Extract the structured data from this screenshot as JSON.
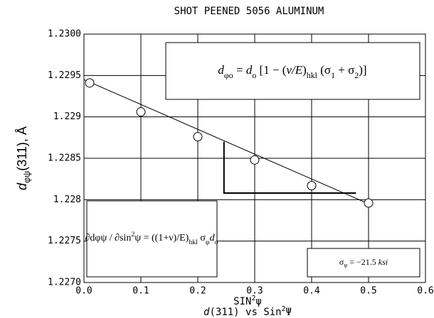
{
  "chart_data": {
    "type": "scatter",
    "title": "SHOT PEENED 5056 ALUMINUM",
    "xlabel": [
      {
        "t": "SIN"
      },
      {
        "t": "2",
        "sup": true
      },
      {
        "t": "ψ"
      }
    ],
    "caption": [
      {
        "t": "d",
        "it": true
      },
      {
        "t": "(311) vs Sin"
      },
      {
        "t": "2",
        "sup": true
      },
      {
        "t": "Ψ"
      }
    ],
    "ylabel": [
      {
        "t": "d",
        "it": true
      },
      {
        "t": "φψ",
        "sub": true
      },
      {
        "t": "(311), Å"
      }
    ],
    "x": [
      0.01,
      0.1,
      0.2,
      0.3,
      0.4,
      0.5
    ],
    "values": [
      1.22941,
      1.22906,
      1.22876,
      1.22848,
      1.22817,
      1.22796
    ],
    "fit_line": {
      "x": [
        0,
        0.5
      ],
      "values": [
        1.22945,
        1.22795
      ]
    },
    "slope_triangle": {
      "x": [
        0.246,
        0.246,
        0.478
      ],
      "values": [
        1.2287,
        1.22808,
        1.22808
      ]
    },
    "xlim": [
      0,
      0.6
    ],
    "xticks": [
      {
        "value": 0,
        "label": "0.0"
      },
      0.1,
      0.2,
      0.3,
      0.4,
      0.5,
      0.6
    ],
    "ylim": [
      1.227,
      1.23
    ],
    "yticks": [
      {
        "value": 1.227,
        "label": "1.2270"
      },
      1.2275,
      1.228,
      1.2285,
      1.229,
      1.2295,
      {
        "value": 1.23,
        "label": "1.2300"
      }
    ],
    "grid": true,
    "annotations": [
      [
        {
          "t": "d",
          "it": true
        },
        {
          "t": "φo",
          "sub": true
        },
        {
          "t": " = "
        },
        {
          "t": "d",
          "it": true
        },
        {
          "t": "o",
          "sub": true
        },
        {
          "t": " [1 − ("
        },
        {
          "t": "ν/E",
          "it": true
        },
        {
          "t": ")"
        },
        {
          "t": "hkl",
          "sub": true
        },
        {
          "t": " (σ"
        },
        {
          "t": "1",
          "sub": true
        },
        {
          "t": " + σ"
        },
        {
          "t": "2",
          "sub": true
        },
        {
          "t": ")]"
        }
      ],
      [
        {
          "t": "∂dφψ / ∂sin"
        },
        {
          "t": "2",
          "sup": true
        },
        {
          "t": "ψ = ((1+ν)/E)"
        },
        {
          "t": "hkl",
          "sub": true
        },
        {
          "t": " σ"
        },
        {
          "t": "φ",
          "sub": true
        },
        {
          "t": "d",
          "it": true
        },
        {
          "t": "o",
          "sub": true
        }
      ],
      [
        {
          "t": "σ"
        },
        {
          "t": "φ",
          "sub": true
        },
        {
          "t": " = −21.5 "
        },
        {
          "t": "ksi",
          "it": true
        }
      ]
    ]
  }
}
